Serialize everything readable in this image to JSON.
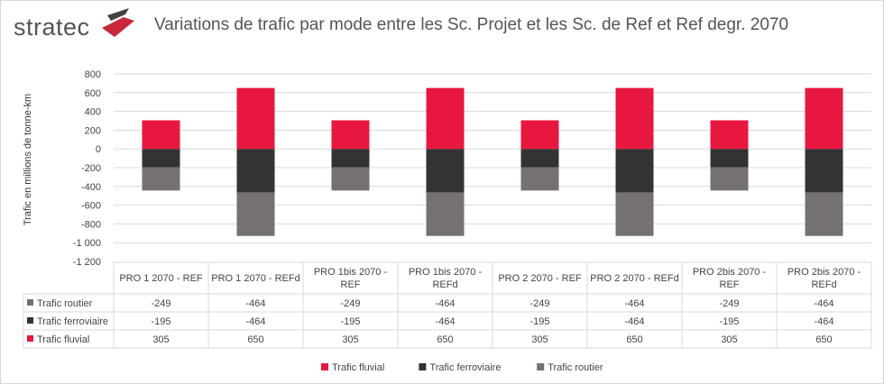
{
  "logo": "stratec",
  "chart_data": {
    "type": "bar",
    "stacked": true,
    "title": "Variations de trafic par mode entre les Sc. Projet et les Sc. de Ref et Ref degr. 2070",
    "ylabel": "Trafic en millions de tonne-km",
    "xlabel": "",
    "ylim": [
      -1200,
      800
    ],
    "yticks": [
      800,
      600,
      400,
      200,
      0,
      -200,
      -400,
      -600,
      -800,
      -1000,
      -1200
    ],
    "ytick_labels": [
      "800",
      "600",
      "400",
      "200",
      "0",
      "-200",
      "-400",
      "-600",
      "-800",
      "-1 000",
      "-1 200"
    ],
    "grid": true,
    "legend_position": "bottom",
    "data_table": true,
    "categories": [
      "PRO 1 2070 - REF",
      "PRO 1 2070 - REFd",
      "PRO 1bis 2070 - REF",
      "PRO 1bis 2070 - REFd",
      "PRO 2 2070 - REF",
      "PRO 2 2070 - REFd",
      "PRO 2bis 2070 - REF",
      "PRO 2bis 2070 - REFd"
    ],
    "series": [
      {
        "name": "Trafic routier",
        "color": "#767171",
        "values": [
          -249,
          -464,
          -249,
          -464,
          -249,
          -464,
          -249,
          -464
        ]
      },
      {
        "name": "Trafic ferroviaire",
        "color": "#333333",
        "values": [
          -195,
          -464,
          -195,
          -464,
          -195,
          -464,
          -195,
          -464
        ]
      },
      {
        "name": "Trafic fluvial",
        "color": "#e8173f",
        "values": [
          305,
          650,
          305,
          650,
          305,
          650,
          305,
          650
        ]
      }
    ],
    "legend_order": [
      "Trafic fluvial",
      "Trafic ferroviaire",
      "Trafic routier"
    ]
  }
}
